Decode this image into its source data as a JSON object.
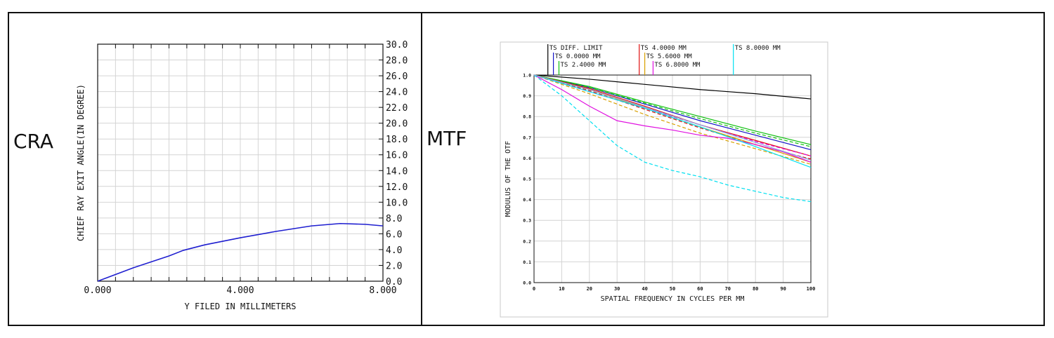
{
  "panels": {
    "left_label": "CRA",
    "right_label": "MTF"
  },
  "chart_data": [
    {
      "type": "line",
      "xlabel": "Y FILED IN MILLIMETERS",
      "ylabel": "CHIEF RAY EXIT ANGLE(IN DEGREE)",
      "xlim": [
        0,
        8
      ],
      "ylim": [
        0,
        30
      ],
      "x_ticks": [
        "0.000",
        "4.000",
        "8.000"
      ],
      "y_ticks": [
        "0.0",
        "2.0",
        "4.0",
        "6.0",
        "8.0",
        "10.0",
        "12.0",
        "14.0",
        "16.0",
        "18.0",
        "20.0",
        "22.0",
        "24.0",
        "26.0",
        "28.0",
        "30.0"
      ],
      "grid": true,
      "series": [
        {
          "color": "#1f1fd0",
          "x": [
            0,
            1,
            2,
            2.4,
            3,
            4,
            5,
            6,
            6.8,
            7.5,
            8.0
          ],
          "y": [
            0.0,
            1.7,
            3.2,
            3.9,
            4.6,
            5.5,
            6.3,
            7.0,
            7.3,
            7.2,
            7.0
          ]
        }
      ]
    },
    {
      "type": "line",
      "xlabel": "SPATIAL FREQUENCY IN CYCLES PER MM",
      "ylabel": "MODULUS OF THE OTF",
      "xlim": [
        0,
        100
      ],
      "ylim": [
        0,
        1.0
      ],
      "x_ticks": [
        "0",
        "10",
        "20",
        "30",
        "40",
        "50",
        "60",
        "70",
        "80",
        "90",
        "100"
      ],
      "y_ticks": [
        "0.0",
        "0.1",
        "0.2",
        "0.3",
        "0.4",
        "0.5",
        "0.6",
        "0.7",
        "0.8",
        "0.9",
        "1.0"
      ],
      "grid": true,
      "legend": [
        {
          "label": "TS DIFF. LIMIT",
          "color": "#000000",
          "x": 5,
          "row": 0
        },
        {
          "label": "TS 0.0000 MM",
          "color": "#1515c8",
          "x": 7,
          "row": 1
        },
        {
          "label": "TS 2.4000 MM",
          "color": "#10c010",
          "x": 9,
          "row": 2
        },
        {
          "label": "TS 4.0000 MM",
          "color": "#e01010",
          "x": 38,
          "row": 0
        },
        {
          "label": "TS 5.6000 MM",
          "color": "#d8a000",
          "x": 40,
          "row": 1
        },
        {
          "label": "TS 6.8000 MM",
          "color": "#e010e0",
          "x": 43,
          "row": 2
        },
        {
          "label": "TS 8.0000 MM",
          "color": "#00e0f0",
          "x": 72,
          "row": 0
        }
      ],
      "series": [
        {
          "name": "TS DIFF. LIMIT",
          "color": "#000000",
          "dash": false,
          "x": [
            0,
            20,
            40,
            60,
            80,
            100
          ],
          "y": [
            1.0,
            0.98,
            0.955,
            0.93,
            0.91,
            0.885
          ]
        },
        {
          "name": "TS 0.0000 MM",
          "color": "#1515c8",
          "dash": false,
          "x": [
            0,
            20,
            40,
            60,
            80,
            100
          ],
          "y": [
            1.0,
            0.94,
            0.86,
            0.78,
            0.71,
            0.64
          ]
        },
        {
          "name": "TS 2.4000 MM",
          "color": "#10c010",
          "dash": false,
          "x": [
            0,
            20,
            40,
            60,
            80,
            100
          ],
          "y": [
            1.0,
            0.945,
            0.87,
            0.8,
            0.73,
            0.665
          ]
        },
        {
          "name": "TS 2.4000 MM",
          "color": "#10c010",
          "dash": true,
          "x": [
            0,
            20,
            40,
            60,
            80,
            100
          ],
          "y": [
            1.0,
            0.94,
            0.865,
            0.79,
            0.72,
            0.655
          ]
        },
        {
          "name": "TS 4.0000 MM",
          "color": "#e01010",
          "dash": false,
          "x": [
            0,
            20,
            40,
            60,
            80,
            100
          ],
          "y": [
            1.0,
            0.935,
            0.85,
            0.76,
            0.685,
            0.61
          ]
        },
        {
          "name": "TS 4.0000 MM",
          "color": "#e01010",
          "dash": true,
          "x": [
            0,
            20,
            40,
            60,
            80,
            100
          ],
          "y": [
            1.0,
            0.925,
            0.835,
            0.745,
            0.665,
            0.595
          ]
        },
        {
          "name": "TS 5.6000 MM",
          "color": "#d8a000",
          "dash": false,
          "x": [
            0,
            20,
            40,
            60,
            80,
            100
          ],
          "y": [
            1.0,
            0.93,
            0.84,
            0.75,
            0.665,
            0.58
          ]
        },
        {
          "name": "TS 5.6000 MM",
          "color": "#d8a000",
          "dash": true,
          "x": [
            0,
            20,
            40,
            60,
            80,
            100
          ],
          "y": [
            1.0,
            0.91,
            0.81,
            0.72,
            0.645,
            0.57
          ]
        },
        {
          "name": "TS 6.8000 MM",
          "color": "#e010e0",
          "dash": false,
          "x": [
            0,
            10,
            20,
            30,
            40,
            50,
            60,
            70,
            80,
            90,
            100
          ],
          "y": [
            1.0,
            0.93,
            0.85,
            0.78,
            0.755,
            0.735,
            0.71,
            0.695,
            0.665,
            0.63,
            0.58
          ]
        },
        {
          "name": "TS 6.8000 MM",
          "color": "#e010e0",
          "dash": true,
          "x": [
            0,
            20,
            40,
            60,
            80,
            100
          ],
          "y": [
            1.0,
            0.92,
            0.84,
            0.76,
            0.68,
            0.61
          ]
        },
        {
          "name": "TS 8.0000 MM",
          "color": "#00e0f0",
          "dash": false,
          "x": [
            0,
            20,
            40,
            60,
            80,
            100
          ],
          "y": [
            1.0,
            0.92,
            0.84,
            0.75,
            0.655,
            0.555
          ]
        },
        {
          "name": "TS 8.0000 MM",
          "color": "#00e0f0",
          "dash": true,
          "x": [
            0,
            10,
            20,
            30,
            40,
            50,
            60,
            70,
            80,
            90,
            100
          ],
          "y": [
            1.0,
            0.9,
            0.78,
            0.66,
            0.58,
            0.54,
            0.51,
            0.47,
            0.44,
            0.41,
            0.39
          ]
        },
        {
          "name": "TS 0.0000 MM",
          "color": "#8aa6e0",
          "dash": false,
          "x": [
            0,
            20,
            40,
            60,
            80,
            100
          ],
          "y": [
            1.0,
            0.93,
            0.845,
            0.76,
            0.675,
            0.59
          ]
        }
      ]
    }
  ]
}
